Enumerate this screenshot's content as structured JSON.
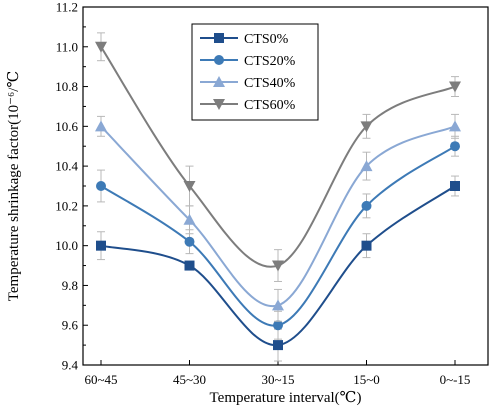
{
  "chart_data": {
    "type": "line",
    "xlabel": "Temperature interval(℃)",
    "ylabel": "Temperature shrinkage factor(10⁻⁶/℃",
    "categories": [
      "60~45",
      "45~30",
      "30~15",
      "15~0",
      "0~-15"
    ],
    "ylim": [
      9.4,
      11.2
    ],
    "yticks": [
      "9.4",
      "9.6",
      "9.8",
      "10.0",
      "10.2",
      "10.4",
      "10.6",
      "10.8",
      "11.0",
      "11.2"
    ],
    "grid": false,
    "legend_position": "top-center",
    "series": [
      {
        "name": "CTS0%",
        "marker": "square",
        "color": "#1f4e8c",
        "values": [
          10.0,
          9.9,
          9.5,
          10.0,
          10.3
        ],
        "errors": [
          0.07,
          0.02,
          0.08,
          0.06,
          0.05
        ]
      },
      {
        "name": "CTS20%",
        "marker": "circle",
        "color": "#3d7ab6",
        "values": [
          10.3,
          10.02,
          9.6,
          10.2,
          10.5
        ],
        "errors": [
          0.08,
          0.06,
          0.07,
          0.06,
          0.05
        ]
      },
      {
        "name": "CTS40%",
        "marker": "triangle-up",
        "color": "#8aa8d4",
        "values": [
          10.6,
          10.13,
          9.7,
          10.4,
          10.6
        ],
        "errors": [
          0.05,
          0.07,
          0.08,
          0.07,
          0.06
        ]
      },
      {
        "name": "CTS60%",
        "marker": "triangle-down",
        "color": "#7d7d7d",
        "values": [
          11.0,
          10.3,
          9.9,
          10.6,
          10.8
        ],
        "errors": [
          0.07,
          0.1,
          0.08,
          0.06,
          0.05
        ]
      }
    ]
  }
}
